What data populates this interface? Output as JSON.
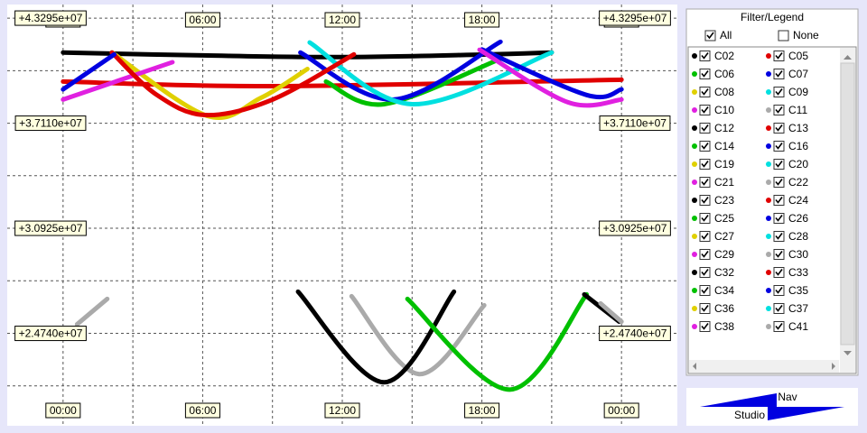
{
  "chart_data": {
    "type": "line",
    "xlim": [
      -2.4,
      26.4
    ],
    "ylim": [
      19301000,
      44095000
    ],
    "xticks": [
      {
        "value": 0,
        "label": "00:00"
      },
      {
        "value": 6,
        "label": "06:00"
      },
      {
        "value": 12,
        "label": "12:00"
      },
      {
        "value": 18,
        "label": "18:00"
      },
      {
        "value": 24,
        "label": "00:00"
      }
    ],
    "yticks": [
      {
        "value": 24740000,
        "label": "+2.4740e+07"
      },
      {
        "value": 30925000,
        "label": "+3.0925e+07"
      },
      {
        "value": 37110000,
        "label": "+3.7110e+07"
      },
      {
        "value": 43295000,
        "label": "+4.3295e+07"
      }
    ],
    "grid": true,
    "series": [
      {
        "name": "C02",
        "color": "#000000",
        "x": [
          0,
          6,
          12,
          18,
          21
        ],
        "values": [
          41270000,
          41100000,
          41000000,
          41150000,
          41270000
        ]
      },
      {
        "name": "C05",
        "color": "#e00000",
        "x": [
          0,
          9,
          24
        ],
        "values": [
          39560000,
          39290000,
          39670000
        ]
      },
      {
        "name": "C06",
        "color": "#00c000",
        "x": [
          11.3,
          13.8,
          18.8
        ],
        "values": [
          39560000,
          38230000,
          40900000
        ]
      },
      {
        "name": "C07",
        "color": "#0000e0",
        "x": [
          10.2,
          14.2,
          18.8
        ],
        "values": [
          41270000,
          38500000,
          41900000
        ]
      },
      {
        "name": "C08",
        "color": "#e0d000",
        "x": [
          2.1,
          6.2,
          8.5,
          10.5
        ],
        "values": [
          41270000,
          37540000,
          38600000,
          40300000
        ]
      },
      {
        "name": "C09",
        "color": "#00e0e0",
        "x": [
          10.6,
          15,
          21
        ],
        "values": [
          41860000,
          38230000,
          41270000
        ]
      },
      {
        "name": "C10",
        "color": "#e020e0",
        "x": [
          0,
          4.7
        ],
        "values": [
          38500000,
          40700000
        ]
      },
      {
        "name": "C11",
        "color": "#aaaaaa",
        "x": [
          12.4,
          15.3,
          18.1
        ],
        "values": [
          26926000,
          22341000,
          26393000
        ]
      },
      {
        "name": "C12",
        "color": "#000000",
        "x": [
          10.1,
          13.8,
          16.8
        ],
        "values": [
          27193000,
          21861000,
          27193000
        ]
      },
      {
        "name": "C13",
        "color": "#e00000",
        "x": [
          2.1,
          4,
          6.1,
          9,
          12.5
        ],
        "values": [
          41270000,
          38800000,
          37590000,
          38500000,
          41160000
        ]
      },
      {
        "name": "C14",
        "color": "#00c000",
        "x": [
          14.8,
          19.2,
          22.5
        ],
        "values": [
          26766000,
          21434000,
          27033000
        ]
      },
      {
        "name": "C16",
        "color": "#0000e0",
        "x": [
          18,
          22.5,
          24
        ],
        "values": [
          41450000,
          38770000,
          39100000
        ]
      },
      {
        "name": "C19",
        "color": "#e0d000",
        "x": [],
        "values": []
      },
      {
        "name": "C20",
        "color": "#00e0e0",
        "x": [],
        "values": []
      },
      {
        "name": "C21",
        "color": "#e020e0",
        "x": [
          17.9,
          21.7,
          24
        ],
        "values": [
          41430000,
          38340000,
          38500000
        ]
      },
      {
        "name": "C22",
        "color": "#aaaaaa",
        "x": [
          0.6,
          1.9
        ],
        "values": [
          25270000,
          26770000
        ]
      },
      {
        "name": "C23",
        "color": "#000000",
        "x": [
          22.4,
          23.9
        ],
        "values": [
          27030000,
          25430000
        ]
      },
      {
        "name": "C24",
        "color": "#e00000",
        "x": [],
        "values": []
      },
      {
        "name": "C25",
        "color": "#00c000",
        "x": [],
        "values": []
      },
      {
        "name": "C26",
        "color": "#0000e0",
        "x": [
          0,
          2.2
        ],
        "values": [
          39100000,
          41160000
        ]
      },
      {
        "name": "C27",
        "color": "#e0d000",
        "x": [],
        "values": []
      },
      {
        "name": "C28",
        "color": "#00e0e0",
        "x": [],
        "values": []
      },
      {
        "name": "C29",
        "color": "#e020e0",
        "x": [],
        "values": []
      },
      {
        "name": "C30",
        "color": "#aaaaaa",
        "x": [
          23.1,
          24
        ],
        "values": [
          26500000,
          25430000
        ]
      },
      {
        "name": "C32",
        "color": "#000000",
        "x": [],
        "values": []
      },
      {
        "name": "C33",
        "color": "#e00000",
        "x": [],
        "values": []
      },
      {
        "name": "C34",
        "color": "#00c000",
        "x": [],
        "values": []
      },
      {
        "name": "C35",
        "color": "#0000e0",
        "x": [],
        "values": []
      },
      {
        "name": "C36",
        "color": "#e0d000",
        "x": [],
        "values": []
      },
      {
        "name": "C37",
        "color": "#00e0e0",
        "x": [],
        "values": []
      },
      {
        "name": "C38",
        "color": "#e020e0",
        "x": [],
        "values": []
      },
      {
        "name": "C41",
        "color": "#aaaaaa",
        "x": [],
        "values": []
      }
    ]
  },
  "legend_panel": {
    "title": "Filter/Legend",
    "all": "All",
    "all_checked": true,
    "none": "None",
    "none_checked": false
  },
  "logo": {
    "top": "Nav",
    "bottom": "Studio"
  }
}
